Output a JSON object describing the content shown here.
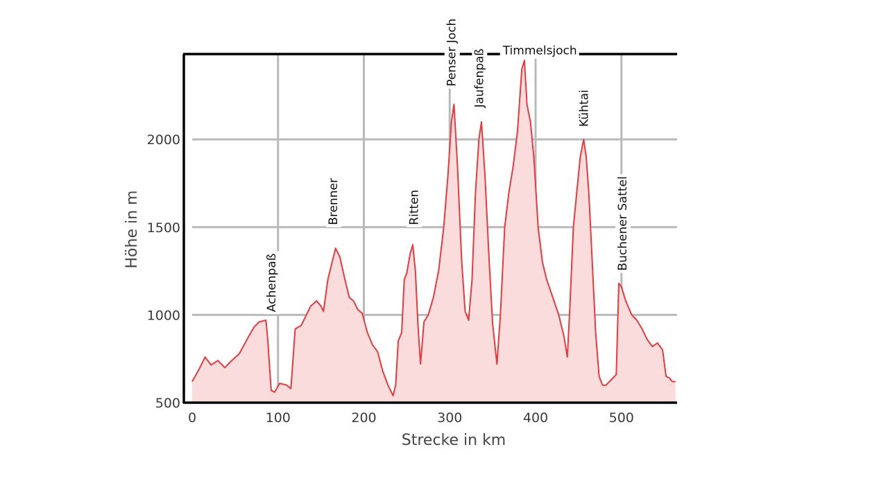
{
  "chart_data": {
    "type": "area",
    "title": "",
    "xlabel": "Strecke in km",
    "ylabel": "Höhe in m",
    "xlim": [
      0,
      565
    ],
    "ylim": [
      500,
      2500
    ],
    "x_ticks": [
      "0",
      "100",
      "200",
      "300",
      "400",
      "500"
    ],
    "y_ticks": [
      "500",
      "1000",
      "1500",
      "2000"
    ],
    "grid": true,
    "colors": {
      "line": "#e8393b",
      "fill": "#fbdcdc",
      "grid": "#b9b9b9"
    },
    "series": [
      {
        "x": [
          0,
          8,
          15,
          22,
          30,
          38,
          45,
          55,
          65,
          72,
          78,
          86,
          88,
          92,
          96,
          102,
          110,
          115,
          120,
          127,
          133,
          138,
          145,
          150,
          153,
          158,
          163,
          167,
          172,
          178,
          183,
          188,
          193,
          198,
          204,
          210,
          216,
          222,
          228,
          234,
          237,
          240,
          244,
          247,
          250,
          254,
          257,
          260,
          263,
          266,
          270,
          275,
          281,
          287,
          293,
          298,
          302,
          305,
          309,
          314,
          318,
          322,
          326,
          330,
          334,
          337,
          341,
          346,
          350,
          355,
          359,
          364,
          369,
          374,
          379,
          384,
          387,
          390,
          394,
          398,
          403,
          408,
          413,
          420,
          427,
          433,
          437,
          440,
          444,
          448,
          452,
          456,
          459,
          462,
          466,
          470,
          474,
          478,
          482,
          486,
          490,
          494,
          497,
          500,
          505,
          512,
          518,
          524,
          530,
          536,
          542,
          548,
          552,
          556,
          559,
          563
        ],
        "y": [
          620,
          690,
          760,
          715,
          740,
          700,
          735,
          780,
          870,
          930,
          960,
          970,
          860,
          570,
          560,
          610,
          600,
          580,
          920,
          940,
          1000,
          1050,
          1080,
          1050,
          1020,
          1200,
          1300,
          1380,
          1330,
          1200,
          1100,
          1080,
          1030,
          1010,
          900,
          830,
          790,
          680,
          600,
          540,
          600,
          850,
          900,
          1200,
          1240,
          1350,
          1400,
          1250,
          940,
          720,
          960,
          1000,
          1100,
          1250,
          1500,
          1800,
          2100,
          2200,
          1850,
          1300,
          1020,
          970,
          1200,
          1700,
          2000,
          2100,
          1800,
          1300,
          950,
          720,
          1000,
          1500,
          1700,
          1850,
          2050,
          2400,
          2450,
          2200,
          2100,
          1900,
          1500,
          1300,
          1200,
          1100,
          1000,
          880,
          760,
          1050,
          1500,
          1700,
          1900,
          2000,
          1900,
          1700,
          1300,
          900,
          650,
          600,
          600,
          620,
          640,
          660,
          1180,
          1160,
          1080,
          1000,
          970,
          920,
          860,
          820,
          840,
          800,
          650,
          640,
          620,
          620
        ]
      }
    ],
    "annotations": [
      {
        "text": "Achenpaß",
        "x": 92,
        "y": 985
      },
      {
        "text": "Brenner",
        "x": 164,
        "y": 1480
      },
      {
        "text": "Ritten",
        "x": 258,
        "y": 1480
      },
      {
        "text": "Penser Joch",
        "x": 302,
        "y": 2270
      },
      {
        "text": "Jaufenpaß",
        "x": 334,
        "y": 2150
      },
      {
        "text": "Timmelsjoch",
        "x": 405,
        "y": 2460
      },
      {
        "text": "Kühtai",
        "x": 456,
        "y": 2040
      },
      {
        "text": "Buchener Sattel",
        "x": 501,
        "y": 1220
      }
    ]
  }
}
